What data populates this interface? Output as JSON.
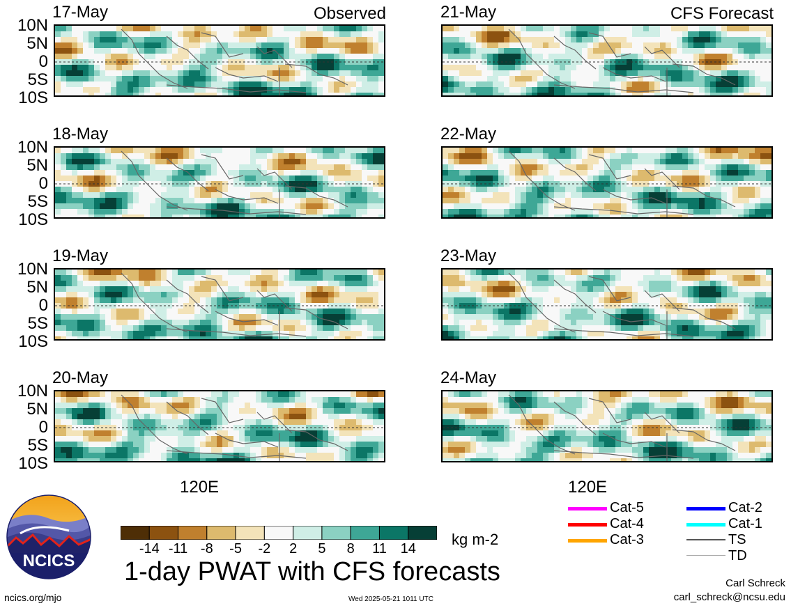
{
  "chart_data": {
    "type": "heatmap",
    "title": "1-day PWAT with CFS forecasts",
    "units": "kg m-2",
    "yticks": [
      "10N",
      "5N",
      "0",
      "5S",
      "10S"
    ],
    "xtick": "120E",
    "ylim": [
      -10,
      10
    ],
    "colorbar": {
      "labels": [
        "-14",
        "-11",
        "-8",
        "-5",
        "-2",
        "2",
        "5",
        "8",
        "11",
        "14"
      ],
      "colors": [
        "#4e2e06",
        "#8c5210",
        "#c0802e",
        "#ddba6e",
        "#f3e3b9",
        "#f8f8f8",
        "#cfeee6",
        "#8bd1c2",
        "#3ea796",
        "#0b7666",
        "#063f36"
      ]
    },
    "panels": [
      {
        "date": "17-May",
        "label": "Observed",
        "column": "observed"
      },
      {
        "date": "18-May",
        "label": "",
        "column": "observed"
      },
      {
        "date": "19-May",
        "label": "",
        "column": "observed"
      },
      {
        "date": "20-May",
        "label": "",
        "column": "observed"
      },
      {
        "date": "21-May",
        "label": "CFS Forecast",
        "column": "forecast"
      },
      {
        "date": "22-May",
        "label": "",
        "column": "forecast"
      },
      {
        "date": "23-May",
        "label": "",
        "column": "forecast"
      },
      {
        "date": "24-May",
        "label": "",
        "column": "forecast"
      }
    ]
  },
  "legend": [
    {
      "label": "Cat-5",
      "color": "#ff00ff"
    },
    {
      "label": "Cat-4",
      "color": "#ff0000"
    },
    {
      "label": "Cat-3",
      "color": "#ffa500"
    },
    {
      "label": "Cat-2",
      "color": "#0000ff"
    },
    {
      "label": "Cat-1",
      "color": "#00ffff"
    },
    {
      "label": "TS",
      "color": "#555555"
    },
    {
      "label": "TD",
      "color": "#aaaaaa"
    }
  ],
  "logo_text": "NCICS",
  "footer": {
    "url": "ncics.org/mjo",
    "timestamp": "Wed 2025-05-21 1011 UTC",
    "author": "Carl Schreck",
    "email": "carl_schreck@ncsu.edu"
  }
}
